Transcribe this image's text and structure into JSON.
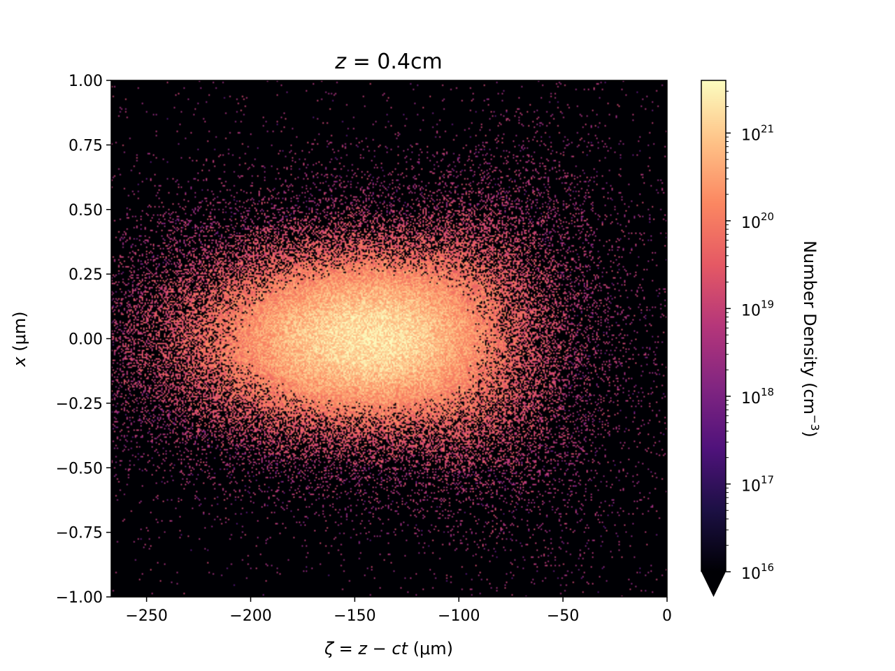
{
  "chart_data": {
    "type": "heatmap",
    "title": "z = 0.4cm",
    "title_parts": {
      "var": "z",
      "rest": " = 0.4cm"
    },
    "xlabel": "ζ = z − ct (μm)",
    "xlabel_parts": {
      "zeta": "ζ",
      "eq1": " = ",
      "z": "z",
      "minus": " − ",
      "ct": "ct",
      "unit": " (μm)"
    },
    "ylabel": "x (μm)",
    "ylabel_parts": {
      "x": "x",
      "unit": " (μm)"
    },
    "xlim": [
      -267,
      0
    ],
    "ylim": [
      -1.0,
      1.0
    ],
    "xticks": [
      -250,
      -200,
      -150,
      -100,
      -50,
      0
    ],
    "xtick_labels": [
      "−250",
      "−200",
      "−150",
      "−100",
      "−50",
      "0"
    ],
    "yticks": [
      1.0,
      0.75,
      0.5,
      0.25,
      0.0,
      -0.25,
      -0.5,
      -0.75,
      -1.0
    ],
    "ytick_labels": [
      "1.00",
      "0.75",
      "0.50",
      "0.25",
      "0.00",
      "−0.25",
      "−0.50",
      "−0.75",
      "−1.00"
    ],
    "colormap": "magma",
    "color_scale": "log",
    "colorbar": {
      "label": "Number Density (cm",
      "label_exp": "−3",
      "label_end": ")",
      "min_exp": 16,
      "max_exp": 21.6,
      "extend": "min",
      "ticks": [
        {
          "base": "10",
          "exp": "16",
          "value": 16
        },
        {
          "base": "10",
          "exp": "17",
          "value": 17
        },
        {
          "base": "10",
          "exp": "18",
          "value": 18
        },
        {
          "base": "10",
          "exp": "19",
          "value": 19
        },
        {
          "base": "10",
          "exp": "20",
          "value": 20
        },
        {
          "base": "10",
          "exp": "21",
          "value": 21
        }
      ]
    },
    "distribution": {
      "center_zeta": -140,
      "center_x": 0.0,
      "peak_log_density": 21.3,
      "background_log_density": 16
    }
  }
}
